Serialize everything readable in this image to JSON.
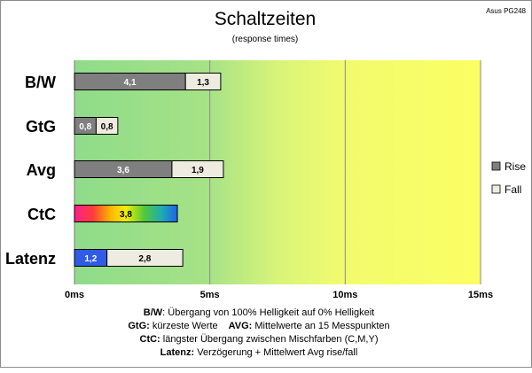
{
  "chart_data": {
    "type": "bar",
    "stacked": true,
    "orientation": "horizontal",
    "title": "Schaltzeiten",
    "subtitle": "(response times)",
    "corner_label": "Asus PG248",
    "xlim": [
      0,
      15
    ],
    "x_ticks": [
      "0ms",
      "5ms",
      "10ms",
      "15ms"
    ],
    "categories": [
      "B/W",
      "GtG",
      "Avg",
      "CtC",
      "Latenz"
    ],
    "series": [
      {
        "name": "Rise",
        "values": [
          4.1,
          0.8,
          3.6,
          null,
          null
        ],
        "labels": [
          "4,1",
          "0,8",
          "3,6",
          "",
          ""
        ],
        "color": "#7f7f7f"
      },
      {
        "name": "Fall",
        "values": [
          1.3,
          0.8,
          1.9,
          null,
          null
        ],
        "labels": [
          "1,3",
          "0,8",
          "1,9",
          "",
          ""
        ],
        "color": "#eeece1"
      }
    ],
    "extra_bars": [
      {
        "category": "CtC",
        "value": 3.8,
        "label": "3,8",
        "fill": "rainbow"
      },
      {
        "category": "Latenz",
        "segments": [
          {
            "value": 1.2,
            "label": "1,2",
            "color": "#2f5be6"
          },
          {
            "value": 2.8,
            "label": "2,8",
            "color": "#eeece1"
          }
        ]
      }
    ],
    "legend": {
      "position": "right",
      "entries": [
        {
          "name": "Rise",
          "color": "#7f7f7f"
        },
        {
          "name": "Fall",
          "color": "#eeece1"
        }
      ]
    },
    "background_zones": [
      "green",
      "yellow"
    ],
    "grid": true
  },
  "notes": [
    {
      "bold": "B/W",
      "text": ":  Übergang von 100% Helligkeit auf 0% Helligkeit"
    },
    {
      "bold": "GtG:",
      "text": " kürzeste  Werte",
      "bold2": "AVG:",
      "text2": " Mittelwerte  an 15 Messpunkten"
    },
    {
      "bold": "CtC:",
      "text": " längster Übergang  zwischen Mischfarben  (C,M,Y)"
    },
    {
      "bold": "Latenz:",
      "text": " Verzögerung  + Mittelwert  Avg rise/fall"
    }
  ]
}
